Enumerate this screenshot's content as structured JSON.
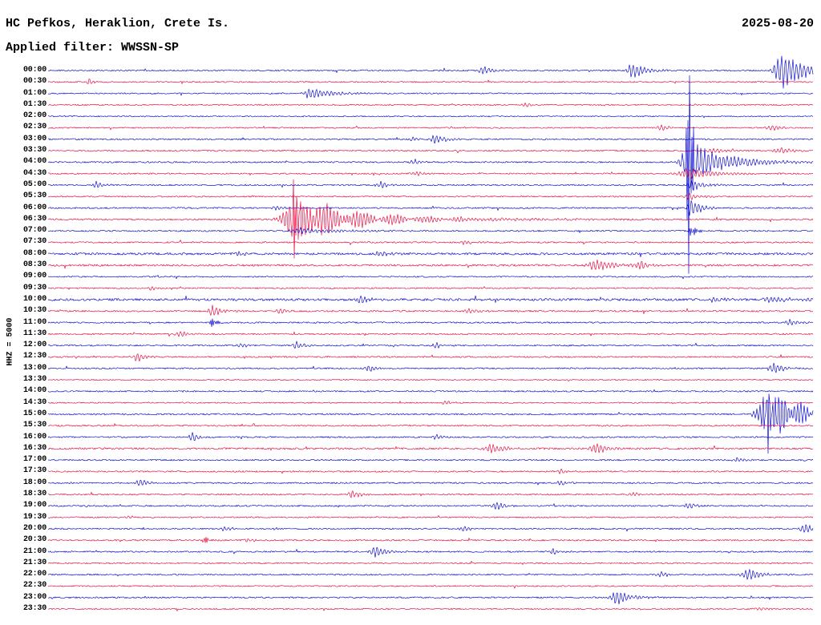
{
  "chart_data": {
    "type": "line",
    "title": "HC Pefkos, Heraklion, Crete Is.",
    "date": "2025-08-20",
    "subtitle": "Applied filter: WWSSN-SP",
    "scale_label": "HHZ = 5000",
    "row_minutes": 30,
    "palette": {
      "even_rows": "#0000cc",
      "odd_rows": "#e60038"
    },
    "rows": [
      {
        "t": "00:00",
        "noise": 0.9,
        "events": [
          {
            "x": 0.571,
            "amp": 5,
            "attack": 5,
            "decay": 12
          },
          {
            "x": 0.765,
            "amp": 11,
            "attack": 5,
            "decay": 16
          },
          {
            "x": 0.959,
            "amp": 26,
            "attack": 6,
            "decay": 26
          }
        ]
      },
      {
        "t": "00:30",
        "noise": 0.8,
        "events": [
          {
            "x": 0.054,
            "amp": 6,
            "attack": 2,
            "decay": 4
          }
        ]
      },
      {
        "t": "01:00",
        "noise": 0.8,
        "events": [
          {
            "x": 0.341,
            "amp": 8,
            "attack": 4,
            "decay": 26
          }
        ]
      },
      {
        "t": "01:30",
        "noise": 0.8,
        "events": [
          {
            "x": 0.624,
            "amp": 3.5,
            "attack": 4,
            "decay": 8
          }
        ]
      },
      {
        "t": "02:00",
        "noise": 0.7,
        "events": []
      },
      {
        "t": "02:30",
        "noise": 0.8,
        "events": [
          {
            "x": 0.802,
            "amp": 4,
            "attack": 5,
            "decay": 10
          },
          {
            "x": 0.947,
            "amp": 4,
            "attack": 5,
            "decay": 10
          }
        ]
      },
      {
        "t": "03:00",
        "noise": 0.9,
        "events": [
          {
            "x": 0.508,
            "amp": 6.5,
            "attack": 5,
            "decay": 12
          },
          {
            "x": 0.477,
            "amp": 3,
            "attack": 3,
            "decay": 6
          }
        ]
      },
      {
        "t": "03:30",
        "noise": 0.9,
        "events": [
          {
            "x": 0.87,
            "amp": 4.5,
            "attack": 6,
            "decay": 12
          },
          {
            "x": 0.959,
            "amp": 5,
            "attack": 7,
            "decay": 14
          }
        ]
      },
      {
        "t": "04:00",
        "noise": 0.9,
        "events": [
          {
            "x": 0.839,
            "amp": 26,
            "attack": 8,
            "decay": 45
          },
          {
            "x": 0.839,
            "amp": 215,
            "attack": 2.5,
            "decay": 3,
            "freq": 2.7
          },
          {
            "x": 0.48,
            "amp": 3.5,
            "attack": 4,
            "decay": 8
          }
        ]
      },
      {
        "t": "04:30",
        "noise": 0.9,
        "events": [
          {
            "x": 0.839,
            "amp": 7,
            "attack": 10,
            "decay": 35
          },
          {
            "x": 0.482,
            "amp": 3.5,
            "attack": 4,
            "decay": 8
          }
        ]
      },
      {
        "t": "05:00",
        "noise": 0.9,
        "events": [
          {
            "x": 0.063,
            "amp": 5.5,
            "attack": 3,
            "decay": 8
          },
          {
            "x": 0.435,
            "amp": 5,
            "attack": 4,
            "decay": 10
          },
          {
            "x": 0.841,
            "amp": 9,
            "attack": 3,
            "decay": 14
          }
        ]
      },
      {
        "t": "05:30",
        "noise": 0.8,
        "events": [
          {
            "x": 0.839,
            "amp": 5,
            "attack": 5,
            "decay": 12
          }
        ]
      },
      {
        "t": "06:00",
        "noise": 0.9,
        "events": [
          {
            "x": 0.841,
            "amp": 14,
            "attack": 3,
            "decay": 12
          },
          {
            "x": 0.3,
            "amp": 3,
            "attack": 4,
            "decay": 8
          }
        ]
      },
      {
        "t": "06:30",
        "noise": 1.0,
        "events": [
          {
            "x": 0.325,
            "amp": 30,
            "attack": 12,
            "decay": 60,
            "freq": 1.5
          },
          {
            "x": 0.323,
            "amp": 52,
            "attack": 3,
            "decay": 5,
            "freq": 2.7
          },
          {
            "x": 0.34,
            "amp": 8,
            "attack": 15,
            "decay": 150
          }
        ]
      },
      {
        "t": "07:00",
        "noise": 0.9,
        "events": [
          {
            "x": 0.841,
            "amp": 10,
            "attack": 2,
            "decay": 6,
            "freq": 2.7
          },
          {
            "x": 0.33,
            "amp": 4,
            "attack": 10,
            "decay": 50
          }
        ]
      },
      {
        "t": "07:30",
        "noise": 0.9,
        "events": [
          {
            "x": 0.545,
            "amp": 3.5,
            "attack": 4,
            "decay": 8
          }
        ]
      },
      {
        "t": "08:00",
        "noise": 1.4,
        "events": [
          {
            "x": 0.435,
            "amp": 4.5,
            "attack": 4,
            "decay": 10
          },
          {
            "x": 0.25,
            "amp": 3,
            "attack": 4,
            "decay": 8
          }
        ]
      },
      {
        "t": "08:30",
        "noise": 1.2,
        "events": [
          {
            "x": 0.718,
            "amp": 9,
            "attack": 7,
            "decay": 18
          },
          {
            "x": 0.776,
            "amp": 5,
            "attack": 6,
            "decay": 12
          }
        ]
      },
      {
        "t": "09:00",
        "noise": 0.8,
        "events": []
      },
      {
        "t": "09:30",
        "noise": 0.8,
        "events": [
          {
            "x": 0.136,
            "amp": 3.5,
            "attack": 3,
            "decay": 6
          }
        ]
      },
      {
        "t": "10:00",
        "noise": 1.5,
        "events": [
          {
            "x": 0.409,
            "amp": 5,
            "attack": 4,
            "decay": 10
          },
          {
            "x": 0.87,
            "amp": 4,
            "attack": 5,
            "decay": 12
          },
          {
            "x": 0.945,
            "amp": 3.5,
            "attack": 8,
            "decay": 40
          }
        ]
      },
      {
        "t": "10:30",
        "noise": 1.0,
        "events": [
          {
            "x": 0.215,
            "amp": 7.5,
            "attack": 4,
            "decay": 12
          },
          {
            "x": 0.304,
            "amp": 4,
            "attack": 4,
            "decay": 8
          },
          {
            "x": 0.55,
            "amp": 4.5,
            "attack": 4,
            "decay": 10
          }
        ]
      },
      {
        "t": "11:00",
        "noise": 0.9,
        "events": [
          {
            "x": 0.215,
            "amp": 10,
            "attack": 2,
            "decay": 4,
            "freq": 2.7
          },
          {
            "x": 0.97,
            "amp": 5,
            "attack": 4,
            "decay": 10
          }
        ]
      },
      {
        "t": "11:30",
        "noise": 0.9,
        "events": [
          {
            "x": 0.173,
            "amp": 5,
            "attack": 4,
            "decay": 8
          }
        ]
      },
      {
        "t": "12:00",
        "noise": 0.9,
        "events": [
          {
            "x": 0.252,
            "amp": 4,
            "attack": 3,
            "decay": 8
          },
          {
            "x": 0.325,
            "amp": 6.5,
            "attack": 3,
            "decay": 8
          },
          {
            "x": 0.508,
            "amp": 4,
            "attack": 4,
            "decay": 8
          }
        ]
      },
      {
        "t": "12:30",
        "noise": 0.9,
        "events": [
          {
            "x": 0.117,
            "amp": 7,
            "attack": 3,
            "decay": 7
          }
        ]
      },
      {
        "t": "13:00",
        "noise": 0.9,
        "events": [
          {
            "x": 0.419,
            "amp": 4,
            "attack": 4,
            "decay": 8
          },
          {
            "x": 0.949,
            "amp": 7,
            "attack": 5,
            "decay": 13
          }
        ]
      },
      {
        "t": "13:30",
        "noise": 0.7,
        "events": []
      },
      {
        "t": "14:00",
        "noise": 0.9,
        "events": []
      },
      {
        "t": "14:30",
        "noise": 0.8,
        "events": [
          {
            "x": 0.519,
            "amp": 3.5,
            "attack": 4,
            "decay": 8
          }
        ]
      },
      {
        "t": "15:00",
        "noise": 1.0,
        "events": [
          {
            "x": 0.943,
            "amp": 30,
            "attack": 10,
            "decay": 40,
            "freq": 1.6
          },
          {
            "x": 0.94,
            "amp": 38,
            "attack": 3,
            "decay": 7,
            "freq": 2.5
          },
          {
            "x": 0.95,
            "amp": 10,
            "attack": 5,
            "decay": 90
          }
        ]
      },
      {
        "t": "15:30",
        "noise": 0.9,
        "events": []
      },
      {
        "t": "16:00",
        "noise": 0.9,
        "events": [
          {
            "x": 0.189,
            "amp": 6.5,
            "attack": 3,
            "decay": 8
          },
          {
            "x": 0.508,
            "amp": 3.5,
            "attack": 4,
            "decay": 8
          }
        ]
      },
      {
        "t": "16:30",
        "noise": 1.1,
        "events": [
          {
            "x": 0.582,
            "amp": 7,
            "attack": 7,
            "decay": 15
          },
          {
            "x": 0.718,
            "amp": 8.5,
            "attack": 6,
            "decay": 13
          }
        ]
      },
      {
        "t": "17:00",
        "noise": 0.9,
        "events": [
          {
            "x": 0.901,
            "amp": 4,
            "attack": 4,
            "decay": 8
          }
        ]
      },
      {
        "t": "17:30",
        "noise": 0.9,
        "events": [
          {
            "x": 0.671,
            "amp": 3.5,
            "attack": 4,
            "decay": 8
          }
        ]
      },
      {
        "t": "18:00",
        "noise": 0.9,
        "events": [
          {
            "x": 0.121,
            "amp": 6,
            "attack": 4,
            "decay": 10
          },
          {
            "x": 0.671,
            "amp": 3.5,
            "attack": 4,
            "decay": 8
          }
        ]
      },
      {
        "t": "18:30",
        "noise": 0.9,
        "events": [
          {
            "x": 0.398,
            "amp": 6,
            "attack": 4,
            "decay": 10
          },
          {
            "x": 0.765,
            "amp": 3.5,
            "attack": 4,
            "decay": 8
          }
        ]
      },
      {
        "t": "19:00",
        "noise": 0.9,
        "events": [
          {
            "x": 0.587,
            "amp": 6,
            "attack": 4,
            "decay": 10
          },
          {
            "x": 0.839,
            "amp": 4,
            "attack": 4,
            "decay": 8
          }
        ]
      },
      {
        "t": "19:30",
        "noise": 0.8,
        "events": [
          {
            "x": 0.105,
            "amp": 3,
            "attack": 3,
            "decay": 6
          }
        ]
      },
      {
        "t": "20:00",
        "noise": 0.9,
        "events": [
          {
            "x": 0.231,
            "amp": 4,
            "attack": 3,
            "decay": 8
          },
          {
            "x": 0.545,
            "amp": 4.5,
            "attack": 4,
            "decay": 8
          },
          {
            "x": 0.991,
            "amp": 7,
            "attack": 5,
            "decay": 11
          }
        ]
      },
      {
        "t": "20:30",
        "noise": 0.9,
        "events": [
          {
            "x": 0.204,
            "amp": 8.5,
            "attack": 2,
            "decay": 5,
            "freq": 2.7
          },
          {
            "x": 0.262,
            "amp": 3.5,
            "attack": 3,
            "decay": 6
          }
        ]
      },
      {
        "t": "21:00",
        "noise": 0.9,
        "events": [
          {
            "x": 0.43,
            "amp": 7,
            "attack": 6,
            "decay": 13
          },
          {
            "x": 0.66,
            "amp": 4,
            "attack": 4,
            "decay": 8
          }
        ]
      },
      {
        "t": "21:30",
        "noise": 0.8,
        "events": []
      },
      {
        "t": "22:00",
        "noise": 0.9,
        "events": [
          {
            "x": 0.802,
            "amp": 4.5,
            "attack": 4,
            "decay": 8
          },
          {
            "x": 0.917,
            "amp": 8,
            "attack": 7,
            "decay": 15
          }
        ]
      },
      {
        "t": "22:30",
        "noise": 0.8,
        "events": []
      },
      {
        "t": "23:00",
        "noise": 0.9,
        "events": [
          {
            "x": 0.744,
            "amp": 9.5,
            "attack": 6,
            "decay": 18
          }
        ]
      },
      {
        "t": "23:30",
        "noise": 0.8,
        "events": [
          {
            "x": 0.93,
            "amp": 3,
            "attack": 3,
            "decay": 6
          }
        ]
      }
    ]
  }
}
